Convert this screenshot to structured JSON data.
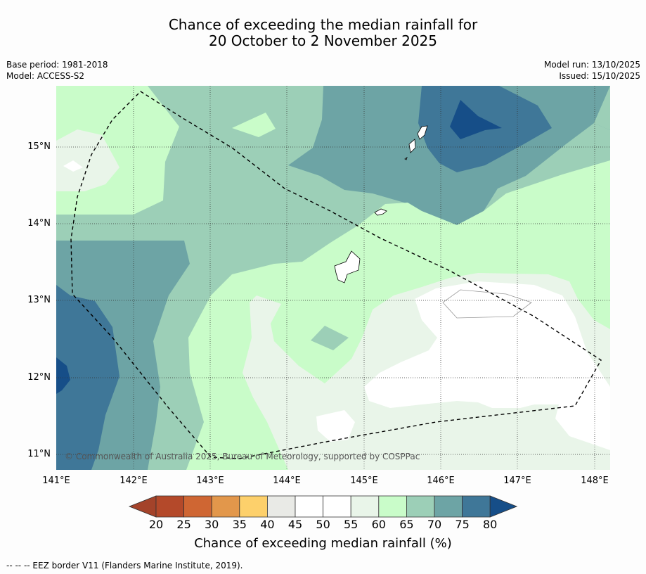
{
  "title": {
    "line1": "Chance of exceeding the median rainfall for",
    "line2": "20 October to 2 November 2025"
  },
  "meta": {
    "base_period": "Base period: 1981-2018",
    "model": "Model: ACCESS-S2",
    "model_run": "Model run: 13/10/2025",
    "issued": "Issued: 15/10/2025"
  },
  "map": {
    "lon_ticks": [
      "141°E",
      "142°E",
      "143°E",
      "144°E",
      "145°E",
      "146°E",
      "147°E",
      "148°E"
    ],
    "lat_ticks": [
      "15°N",
      "14°N",
      "13°N",
      "12°N",
      "11°N"
    ],
    "copyright": "© Commonwealth of Australia 2025, Bureau of Meteorology, supported by COSPPac"
  },
  "colorbar": {
    "labels": [
      "20",
      "25",
      "30",
      "35",
      "40",
      "45",
      "50",
      "55",
      "60",
      "65",
      "70",
      "75",
      "80"
    ],
    "colors": [
      "#b4492a",
      "#cf6633",
      "#e2974b",
      "#fdd06b",
      "#e9eae6",
      "#ffffff",
      "#ffffff",
      "#e9f5e9",
      "#c9fcc9",
      "#9ccfb7",
      "#6da4a5",
      "#3f7798"
    ],
    "under_color": "#a4432a",
    "over_color": "#164e88",
    "title": "Chance of exceeding median rainfall (%)"
  },
  "footnote": "--  --  -- EEZ border V11 (Flanders Marine Institute, 2019)."
}
